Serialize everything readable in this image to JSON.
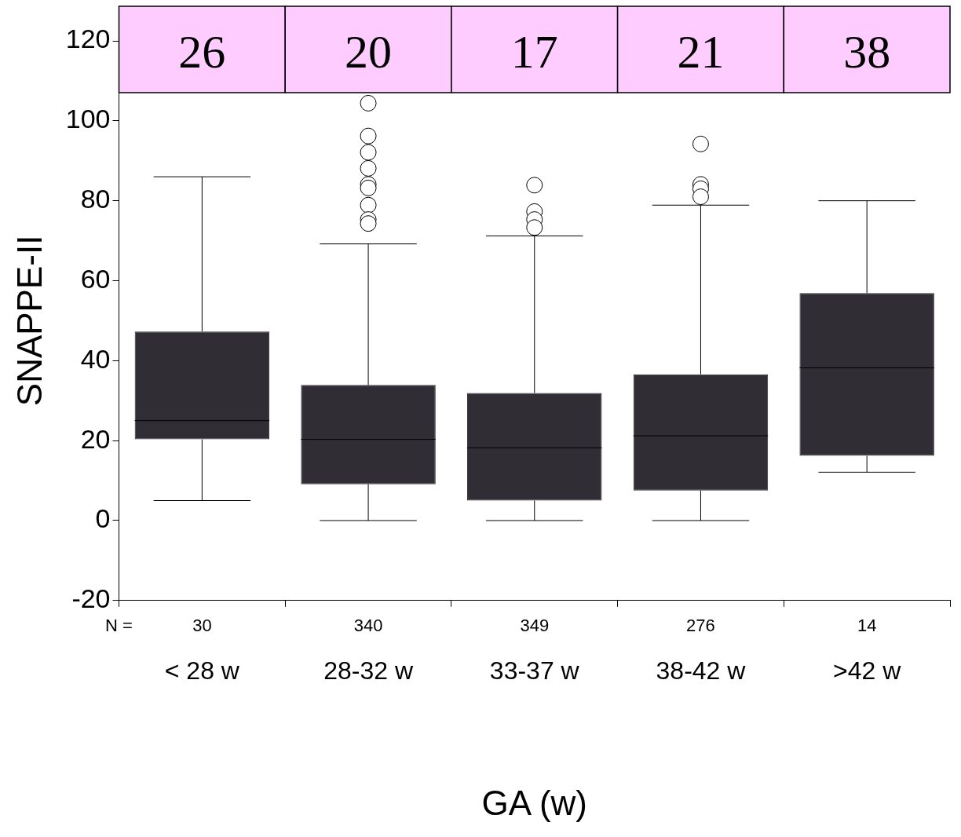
{
  "chart_data": {
    "type": "box",
    "xlabel": "GA (w)",
    "ylabel": "SNAPPE-II",
    "categories": [
      "< 28 w",
      "28-32 w",
      "33-37 w",
      "38-42 w",
      ">42 w"
    ],
    "color": "#312d35",
    "marker": "circle",
    "ylim": [
      -20,
      120
    ],
    "yticks": [
      -20,
      0,
      20,
      40,
      60,
      80,
      100,
      120
    ],
    "boxes": [
      {
        "low": 5,
        "q1": 20.3,
        "median": 25,
        "q3": 47.3,
        "high": 86
      },
      {
        "low": 0,
        "q1": 9.1,
        "median": 20.3,
        "q3": 33.9,
        "high": 69.2,
        "outliers": [
          104.4,
          96.2,
          92.1,
          88.1,
          84.1,
          83.2,
          78.9,
          75.3,
          74.3
        ]
      },
      {
        "low": 0,
        "q1": 5,
        "median": 18.2,
        "q3": 31.9,
        "high": 71.2,
        "outliers": [
          83.9,
          77.3,
          75.3,
          73.3
        ]
      },
      {
        "low": 0,
        "q1": 7.5,
        "median": 21.2,
        "q3": 36.6,
        "high": 78.9,
        "outliers": [
          94.2,
          84.1,
          83,
          81
        ]
      },
      {
        "low": 12.1,
        "q1": 16.2,
        "median": 38.2,
        "q3": 56.9,
        "high": 80
      }
    ],
    "annotations": [
      "26",
      "20",
      "17",
      "21",
      "38",
      "N =",
      "30",
      "340",
      "349",
      "276",
      "14"
    ]
  }
}
